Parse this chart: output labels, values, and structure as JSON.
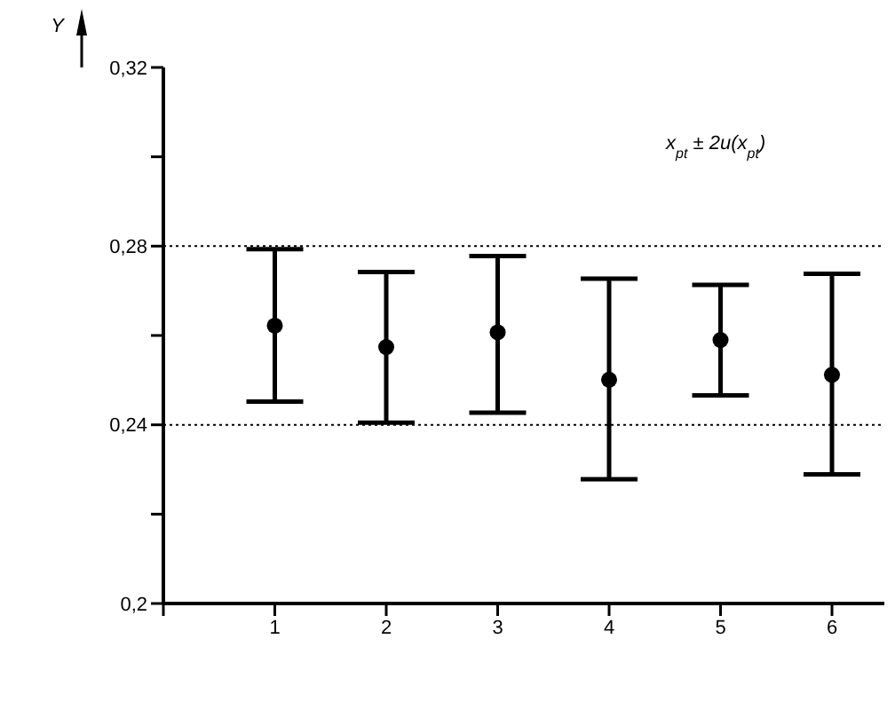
{
  "chart_data": {
    "type": "scatter",
    "ylabel": "Y",
    "annotations": [
      "x$_{pt}$ ± 2u(x$_{pt}$)"
    ],
    "x": [
      1,
      2,
      3,
      4,
      5,
      6
    ],
    "values": [
      0.2622,
      0.2574,
      0.2607,
      0.2501,
      0.259,
      0.2512
    ],
    "errors": [
      [
        0.2452,
        0.2793
      ],
      [
        0.2405,
        0.2742
      ],
      [
        0.2427,
        0.2778
      ],
      [
        0.2278,
        0.2727
      ],
      [
        0.2466,
        0.2713
      ],
      [
        0.2289,
        0.2738
      ]
    ],
    "color": "#000000",
    "marker": "circle",
    "xlim": [
      0,
      6.47
    ],
    "xticks": [
      {
        "value": 0,
        "label": null
      },
      1,
      2,
      3,
      4,
      5,
      6
    ],
    "ylim": [
      0.2,
      0.32
    ],
    "yticks": [
      {
        "value": 0.2,
        "label": "0,2"
      },
      {
        "value": 0.22,
        "label": null
      },
      {
        "value": 0.24,
        "label": "0,24"
      },
      {
        "value": 0.26,
        "label": null
      },
      {
        "value": 0.28,
        "label": "0,28"
      },
      {
        "value": 0.3,
        "label": null
      },
      {
        "value": 0.32,
        "label": "0,32"
      }
    ],
    "ref_lines": [
      {
        "axis": "y",
        "value": 0.24,
        "line_style": "dotted",
        "color": "#000000"
      },
      {
        "axis": "y",
        "value": 0.28,
        "line_style": "dotted",
        "color": "#000000"
      }
    ],
    "grid": false,
    "legend": false
  }
}
